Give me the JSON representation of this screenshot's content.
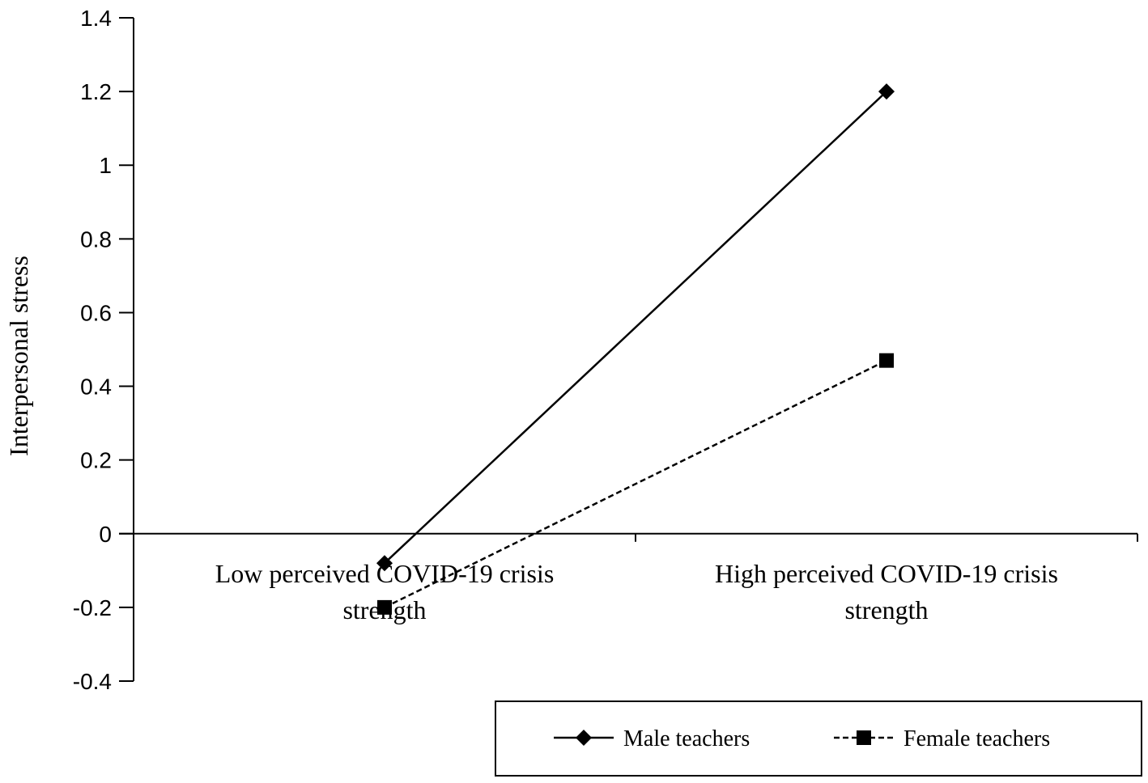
{
  "chart_data": {
    "type": "line",
    "categories": [
      [
        "Low perceived COVID-19 crisis",
        "strength"
      ],
      [
        "High perceived COVID-19 crisis",
        "strength"
      ]
    ],
    "series": [
      {
        "name": "Male teachers",
        "values": [
          -0.08,
          1.2
        ],
        "style": "solid",
        "marker": "diamond",
        "color": "#000000"
      },
      {
        "name": "Female teachers",
        "values": [
          -0.2,
          0.47
        ],
        "style": "dashed",
        "marker": "square",
        "color": "#000000"
      }
    ],
    "title": "",
    "xlabel": "",
    "ylabel": "Interpersonal stress",
    "ylim": [
      -0.4,
      1.4
    ],
    "yticks": [
      "-0.4",
      "-0.2",
      "0",
      "0.2",
      "0.4",
      "0.6",
      "0.8",
      "1",
      "1.2",
      "1.4"
    ],
    "ytick_values": [
      -0.4,
      -0.2,
      0,
      0.2,
      0.4,
      0.6,
      0.8,
      1,
      1.2,
      1.4
    ],
    "grid": false,
    "legend_position": "bottom-right"
  }
}
